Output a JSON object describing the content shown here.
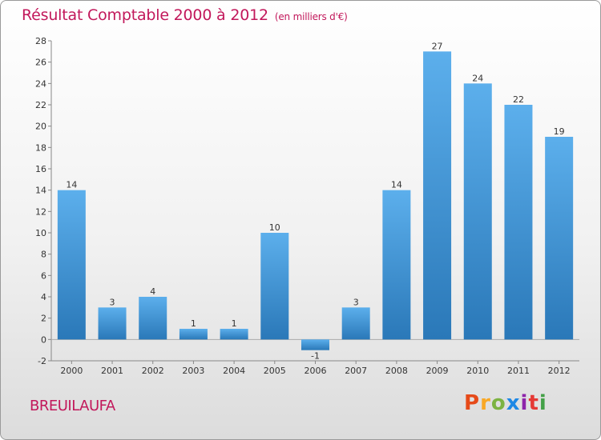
{
  "header": {
    "title": "Résultat Comptable 2000 à 2012",
    "subtitle": "(en milliers d'€)"
  },
  "footer": {
    "commune": "BREUILAUFA",
    "logo_text": "Proxiti",
    "logo_colors": [
      "#e64a19",
      "#f9a825",
      "#7cb342",
      "#1e88e5",
      "#8e24aa",
      "#e53935",
      "#43a047"
    ]
  },
  "colors": {
    "bar": "#3f95d6",
    "bar_light": "#5aacea",
    "bar_dark": "#2a78b8",
    "title": "#c2185b"
  },
  "chart_data": {
    "type": "bar",
    "title": "Résultat Comptable 2000 à 2012",
    "subtitle": "(en milliers d'€)",
    "categories": [
      "2000",
      "2001",
      "2002",
      "2003",
      "2004",
      "2005",
      "2006",
      "2007",
      "2008",
      "2009",
      "2010",
      "2011",
      "2012"
    ],
    "values": [
      14,
      3,
      4,
      1,
      1,
      10,
      -1,
      3,
      14,
      27,
      24,
      22,
      19
    ],
    "ylim": [
      -2,
      28
    ],
    "yticks": [
      -2,
      0,
      2,
      4,
      6,
      8,
      10,
      12,
      14,
      16,
      18,
      20,
      22,
      24,
      26,
      28
    ],
    "grid": false,
    "data_labels": true
  }
}
